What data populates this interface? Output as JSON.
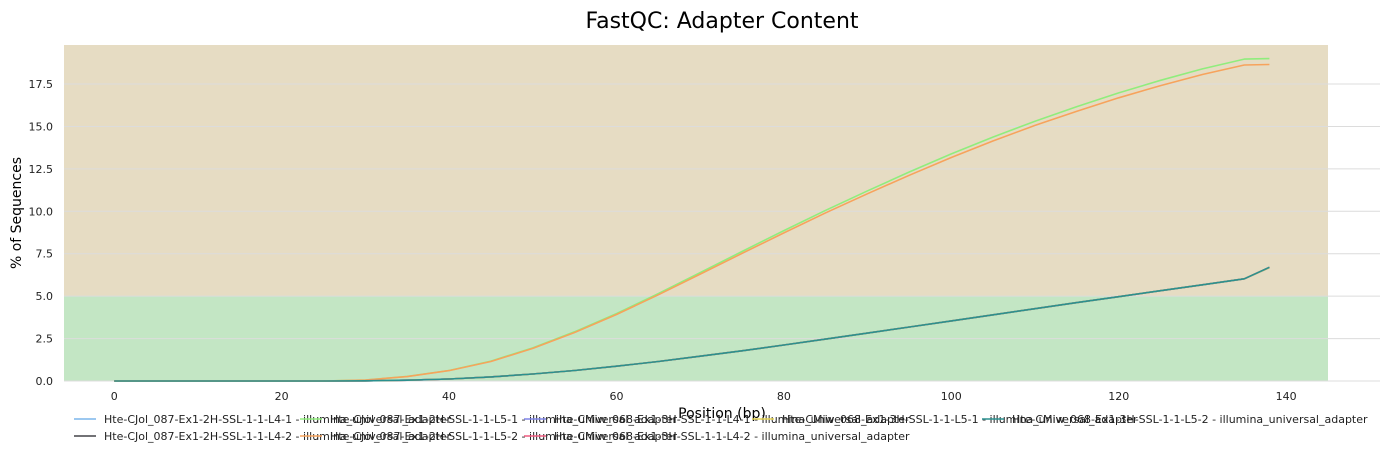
{
  "chart_data": {
    "type": "line",
    "title": "FastQC: Adapter Content",
    "xlabel": "Position (bp)",
    "ylabel": "% of Sequences",
    "xlim": [
      -6,
      145
    ],
    "ylim": [
      0,
      19.8
    ],
    "x_ticks": [
      0,
      20,
      40,
      60,
      80,
      100,
      120,
      140
    ],
    "y_ticks": [
      0,
      2.5,
      5,
      7.5,
      10,
      12.5,
      15,
      17.5
    ],
    "y_tick_labels": [
      "0.0",
      "2.5",
      "5.0",
      "7.5",
      "10.0",
      "12.5",
      "15.0",
      "17.5"
    ],
    "x_tick_labels": [
      "0",
      "20",
      "40",
      "60",
      "80",
      "100",
      "120",
      "140"
    ],
    "grid": true,
    "legend_position": "bottom",
    "background_bands": [
      {
        "from": 0,
        "to": 5,
        "color": "#c3e6c4"
      },
      {
        "from": 5,
        "to": 20,
        "color": "#e6dcc3"
      }
    ],
    "x": [
      0,
      10,
      20,
      25,
      30,
      35,
      40,
      45,
      50,
      55,
      60,
      65,
      70,
      75,
      80,
      85,
      90,
      95,
      100,
      105,
      110,
      115,
      120,
      125,
      130,
      135,
      138
    ],
    "series": [
      {
        "name": "Hte-CJol_087-Ex1-2H-SSL-1-1-L4-1 - illumina_universal_adapter",
        "color": "#7cb5ec",
        "values": [
          0,
          0,
          0,
          0,
          0.01,
          0.05,
          0.12,
          0.24,
          0.41,
          0.62,
          0.87,
          1.15,
          1.46,
          1.78,
          2.12,
          2.47,
          2.82,
          3.18,
          3.54,
          3.9,
          4.26,
          4.62,
          4.97,
          5.32,
          5.67,
          6.02,
          6.68
        ]
      },
      {
        "name": "Hte-CJol_087-Ex1-2H-SSL-1-1-L4-2 - illumina_universal_adapter",
        "color": "#434348",
        "values": [
          0,
          0,
          0,
          0,
          0.01,
          0.05,
          0.12,
          0.24,
          0.41,
          0.62,
          0.87,
          1.15,
          1.46,
          1.78,
          2.12,
          2.47,
          2.82,
          3.18,
          3.54,
          3.9,
          4.26,
          4.62,
          4.97,
          5.32,
          5.67,
          6.02,
          6.7
        ]
      },
      {
        "name": "Hte-CJol_087-Ex1-2H-SSL-1-1-L5-1 - illumina_universal_adapter",
        "color": "#90ed7d",
        "values": [
          0,
          0,
          0,
          0,
          0.06,
          0.27,
          0.62,
          1.17,
          1.95,
          2.9,
          3.97,
          5.15,
          6.39,
          7.63,
          8.86,
          10.06,
          11.21,
          12.32,
          13.38,
          14.38,
          15.31,
          16.17,
          16.98,
          17.72,
          18.39,
          18.97,
          19.0
        ]
      },
      {
        "name": "Hte-CJol_087-Ex1-2H-SSL-1-1-L5-2 - illumina_universal_adapter",
        "color": "#f7a35c",
        "values": [
          0,
          0,
          0,
          0,
          0.06,
          0.26,
          0.61,
          1.15,
          1.92,
          2.86,
          3.92,
          5.08,
          6.3,
          7.52,
          8.73,
          9.91,
          11.04,
          12.13,
          13.17,
          14.15,
          15.06,
          15.9,
          16.69,
          17.41,
          18.06,
          18.62,
          18.65
        ]
      },
      {
        "name": "Hte-CMiw_068-Ex1-3H-SSL-1-1-L4-1 - illumina_universal_adapter",
        "color": "#8085e9",
        "values": [
          0,
          0,
          0,
          0,
          0.01,
          0.05,
          0.12,
          0.24,
          0.41,
          0.62,
          0.87,
          1.15,
          1.46,
          1.78,
          2.12,
          2.47,
          2.82,
          3.18,
          3.54,
          3.9,
          4.26,
          4.62,
          4.97,
          5.32,
          5.67,
          6.02,
          6.68
        ]
      },
      {
        "name": "Hte-CMiw_068-Ex1-3H-SSL-1-1-L4-2 - illumina_universal_adapter",
        "color": "#f15c80",
        "values": [
          0,
          0,
          0,
          0,
          0.01,
          0.05,
          0.12,
          0.24,
          0.41,
          0.62,
          0.87,
          1.15,
          1.46,
          1.78,
          2.12,
          2.47,
          2.82,
          3.18,
          3.54,
          3.9,
          4.26,
          4.62,
          4.97,
          5.32,
          5.67,
          6.02,
          6.69
        ]
      },
      {
        "name": "Hte-CMiw_068-Ex1-3H-SSL-1-1-L5-1 - illumina_universal_adapter",
        "color": "#e4d354",
        "values": [
          0,
          0,
          0,
          0,
          0.01,
          0.05,
          0.12,
          0.24,
          0.41,
          0.62,
          0.87,
          1.15,
          1.46,
          1.78,
          2.12,
          2.47,
          2.82,
          3.18,
          3.54,
          3.9,
          4.26,
          4.62,
          4.97,
          5.32,
          5.67,
          6.02,
          6.68
        ]
      },
      {
        "name": "Hte-CMiw_068-Ex1-3H-SSL-1-1-L5-2 - illumina_universal_adapter",
        "color": "#2b908f",
        "values": [
          0,
          0,
          0,
          0,
          0.01,
          0.05,
          0.12,
          0.24,
          0.41,
          0.62,
          0.87,
          1.15,
          1.46,
          1.78,
          2.12,
          2.47,
          2.82,
          3.18,
          3.54,
          3.9,
          4.26,
          4.62,
          4.97,
          5.32,
          5.67,
          6.02,
          6.7
        ]
      }
    ]
  }
}
